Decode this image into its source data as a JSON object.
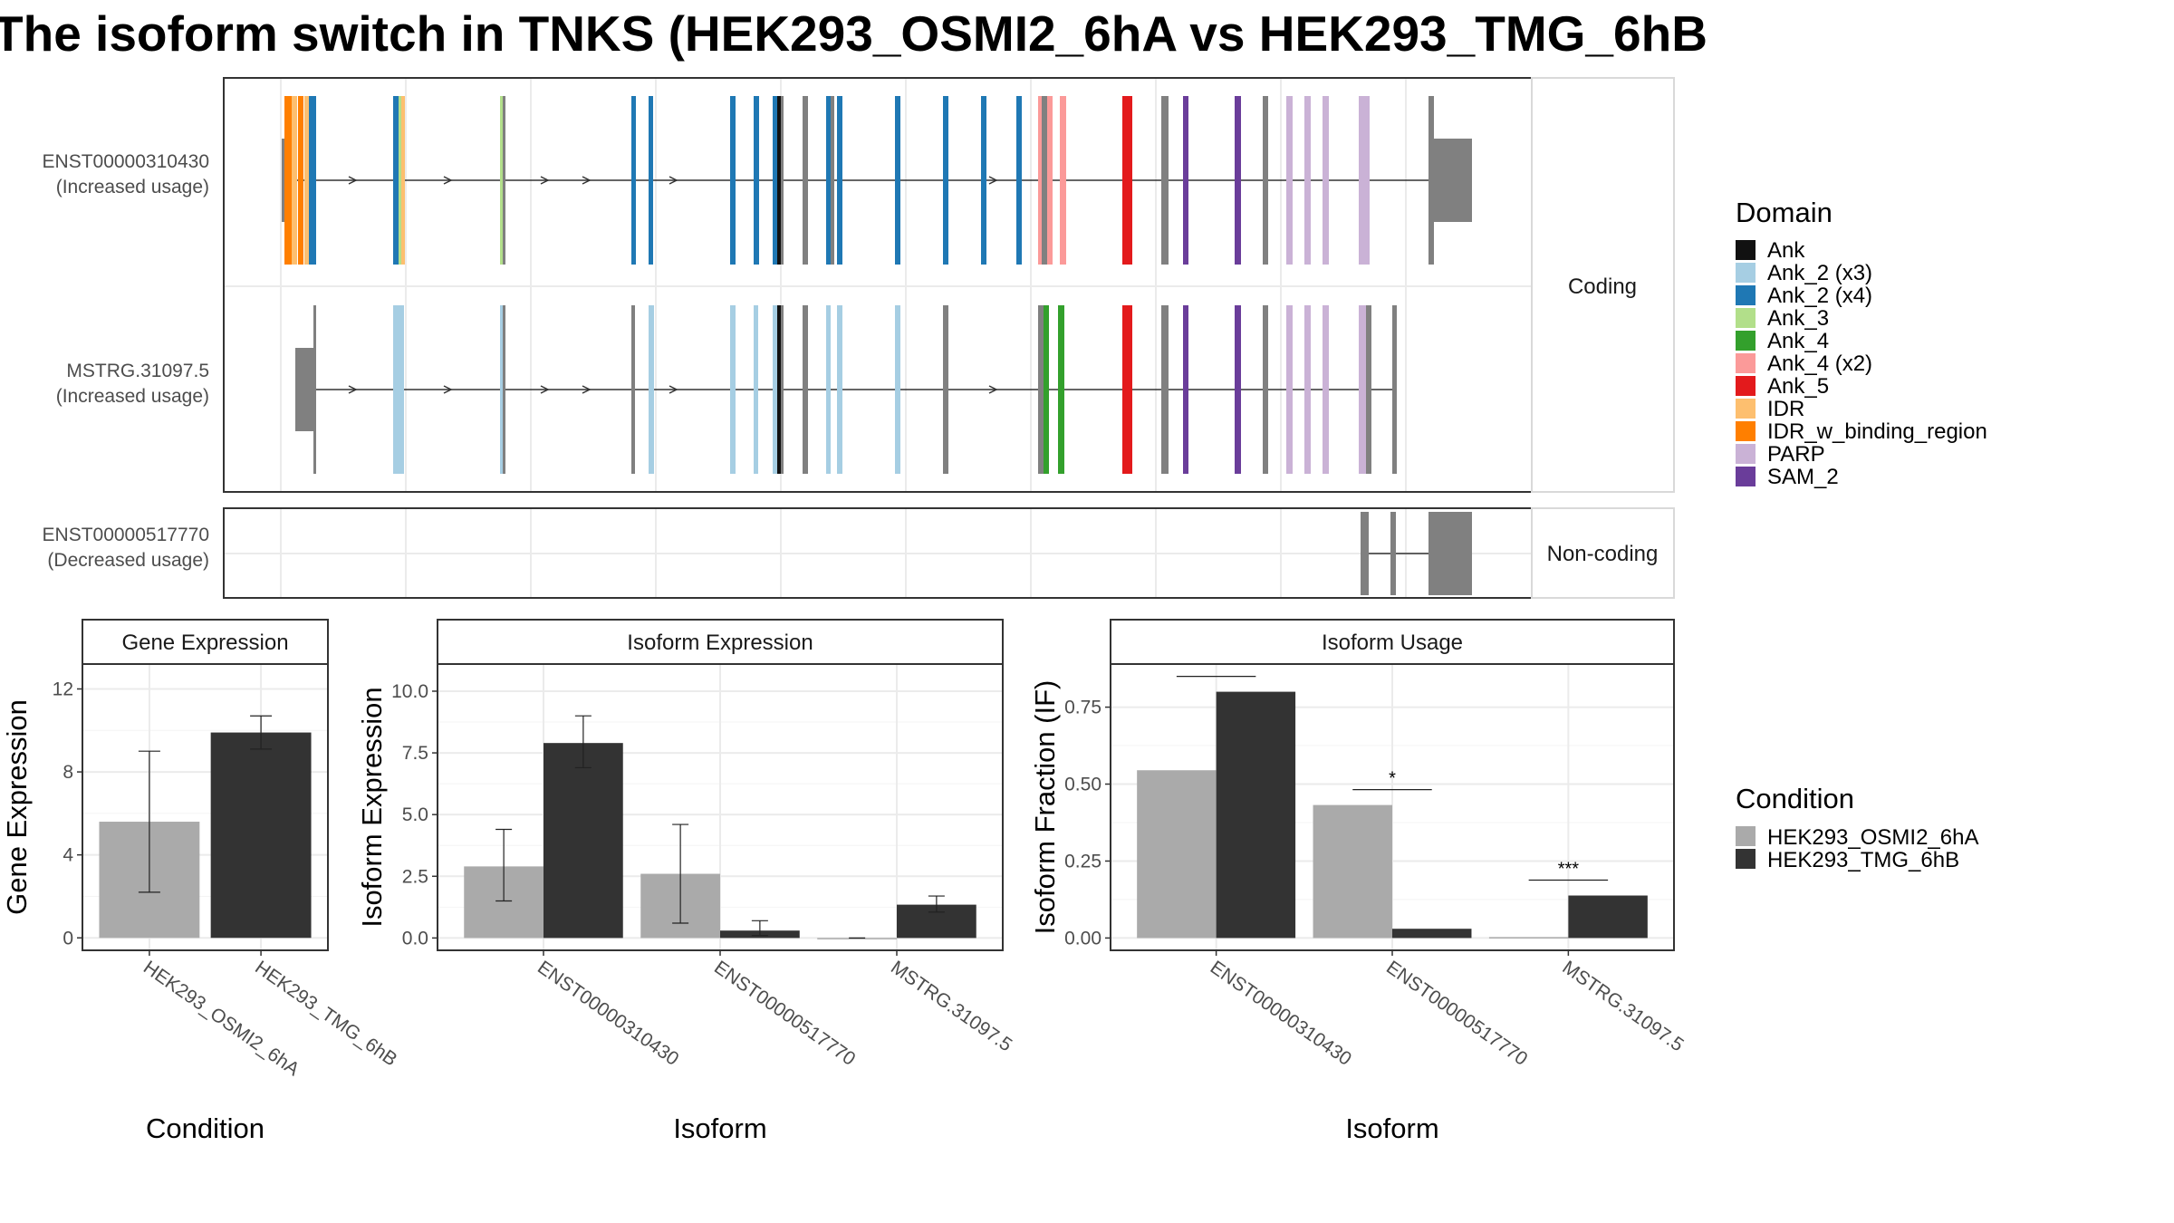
{
  "chart_data": [
    {
      "type": "other",
      "title": "The isoform switch in TNKS (HEK293_OSMI2_6hA vs HEK293_TMG_6hB",
      "strips": {
        "coding": "Coding",
        "noncoding": "Non-coding"
      },
      "transcripts": [
        {
          "id": "ENST00000310430",
          "label": "ENST00000310430",
          "sublabel": "(Increased usage)",
          "group": "coding"
        },
        {
          "id": "MSTRG.31097.5",
          "label": "MSTRG.31097.5",
          "sublabel": "(Increased usage)",
          "group": "coding"
        },
        {
          "id": "ENST00000517770",
          "label": "ENST00000517770",
          "sublabel": "(Decreased usage)",
          "group": "noncoding"
        }
      ],
      "legend": {
        "title": "Domain",
        "entries": [
          {
            "name": "Ank",
            "color": "#111111"
          },
          {
            "name": "Ank_2 (x3)",
            "color": "#a6cee3"
          },
          {
            "name": "Ank_2 (x4)",
            "color": "#1f78b4"
          },
          {
            "name": "Ank_3",
            "color": "#b2df8a"
          },
          {
            "name": "Ank_4",
            "color": "#33a02c"
          },
          {
            "name": "Ank_4 (x2)",
            "color": "#fb9a99"
          },
          {
            "name": "Ank_5",
            "color": "#e31a1c"
          },
          {
            "name": "IDR",
            "color": "#fdbf6f"
          },
          {
            "name": "IDR_w_binding_region",
            "color": "#ff7f00"
          },
          {
            "name": "PARP",
            "color": "#cab2d6"
          },
          {
            "name": "SAM_2",
            "color": "#6a3d9a"
          }
        ]
      }
    },
    {
      "type": "bar",
      "strip": "Gene Expression",
      "xlabel": "Condition",
      "ylabel": "Gene Expression",
      "ylim": [
        -0.6,
        13.2
      ],
      "yticks": [
        "0",
        "4",
        "8",
        "12"
      ],
      "categories": [
        "HEK293_OSMI2_6hA",
        "HEK293_TMG_6hB"
      ],
      "values": [
        5.6,
        9.9
      ],
      "errors": [
        [
          2.2,
          9.0
        ],
        [
          9.1,
          10.7
        ]
      ]
    },
    {
      "type": "bar",
      "strip": "Isoform Expression",
      "xlabel": "Isoform",
      "ylabel": "Isoform Expression",
      "ylim": [
        -0.5,
        11.1
      ],
      "yticks": [
        "0.0",
        "2.5",
        "5.0",
        "7.5",
        "10.0"
      ],
      "categories": [
        "ENST00000310430",
        "ENST00000517770",
        "MSTRG.31097.5"
      ],
      "series": [
        {
          "name": "HEK293_OSMI2_6hA",
          "values": [
            2.9,
            2.6,
            0.0
          ],
          "errors": [
            [
              1.5,
              4.4
            ],
            [
              0.6,
              4.6
            ],
            [
              0.0,
              0.0
            ]
          ]
        },
        {
          "name": "HEK293_TMG_6hB",
          "values": [
            7.9,
            0.3,
            1.35
          ],
          "errors": [
            [
              6.9,
              9.0
            ],
            [
              0.1,
              0.7
            ],
            [
              1.05,
              1.7
            ]
          ]
        }
      ]
    },
    {
      "type": "bar",
      "strip": "Isoform Usage",
      "xlabel": "Isoform",
      "ylabel": "Isoform Fraction (IF)",
      "ylim": [
        -0.04,
        0.89
      ],
      "yticks": [
        "0.00",
        "0.25",
        "0.50",
        "0.75"
      ],
      "categories": [
        "ENST00000310430",
        "ENST00000517770",
        "MSTRG.31097.5"
      ],
      "series": [
        {
          "name": "HEK293_OSMI2_6hA",
          "values": [
            0.545,
            0.432,
            0.003
          ]
        },
        {
          "name": "HEK293_TMG_6hB",
          "values": [
            0.8,
            0.03,
            0.138
          ]
        }
      ],
      "significance": [
        "*",
        "*",
        "***"
      ]
    }
  ],
  "condition_legend": {
    "title": "Condition",
    "entries": [
      {
        "name": "HEK293_OSMI2_6hA",
        "color": "#aaaaaa"
      },
      {
        "name": "HEK293_TMG_6hB",
        "color": "#333333"
      }
    ]
  }
}
